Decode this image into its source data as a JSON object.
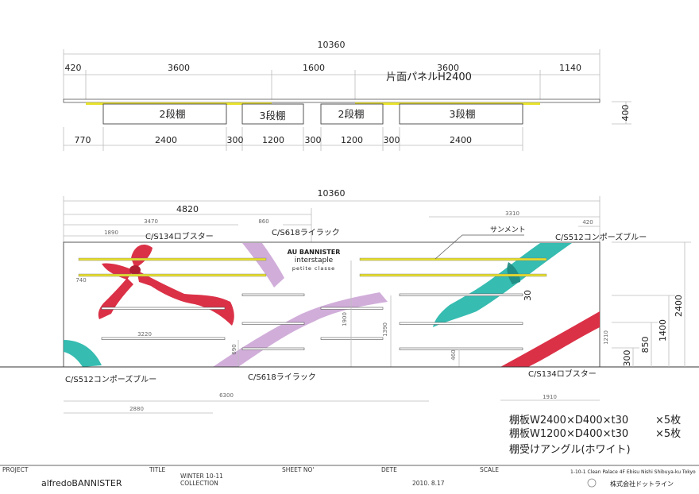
{
  "plan": {
    "overall": "10360",
    "top_dims": [
      "420",
      "3600",
      "1600",
      "3600",
      "1140"
    ],
    "panel_label": "片面パネルH2400",
    "shelves": [
      "2段棚",
      "3段棚",
      "2段棚",
      "3段棚"
    ],
    "depth": "400",
    "bottom_dims": [
      "770",
      "2400",
      "300",
      "1200",
      "300",
      "1200",
      "300",
      "2400"
    ]
  },
  "elevation": {
    "overall": "10360",
    "dim_4820": "4820",
    "dim_3470": "3470",
    "dim_860": "860",
    "dim_1890": "1890",
    "dim_3310": "3310",
    "dim_420": "420",
    "dim_740": "740",
    "dim_3220": "3220",
    "dim_690": "690",
    "dim_1900": "1900",
    "dim_1390": "1390",
    "dim_460": "460",
    "dim_1210": "1210",
    "dim_30": "30",
    "height_dims": [
      "2400",
      "1400",
      "850",
      "300"
    ],
    "color_labels": {
      "lobster_top": "C/S134ロブスター",
      "lilac_top": "C/S618ライラック",
      "blue_top": "C/S512コンポーズブルー",
      "blue_bottom": "C/S512コンポーズブルー",
      "lilac_bottom": "C/S618ライラック",
      "lobster_bottom": "C/S134ロブスター"
    },
    "samment_label": "サンメント",
    "logo": {
      "brand_line": "AU BANNISTER",
      "line2": "interstaple",
      "line3": "petite classe"
    },
    "bottom_dims": [
      "6300",
      "2880",
      "1910"
    ]
  },
  "notes": [
    {
      "text": "棚板W2400×D400×t30",
      "qty": "×5枚"
    },
    {
      "text": "棚板W1200×D400×t30",
      "qty": "×5枚"
    },
    {
      "text": "棚受けアングル(ホワイト)",
      "qty": ""
    }
  ],
  "title_block": {
    "project_label": "PROJECT",
    "project_value": "alfredoBANNISTER",
    "title_label": "TITLE",
    "title_value_1": "WINTER 10-11",
    "title_value_2": "COLLECTION",
    "sheet_label": "SHEET NO'",
    "date_label": "DETE",
    "date_value": "2010. 8.17",
    "scale_label": "SCALE",
    "address": "1-10-1 Clean Palace 4F Ebisu Nishi Shibuya-ku Tokyo",
    "company": "株式会社ドットライン"
  },
  "colors": {
    "lobster": "#d9263d",
    "lilac": "#c9a0d4",
    "blue": "#2bb8ad",
    "shelf_yellow": "#e7e02c"
  }
}
